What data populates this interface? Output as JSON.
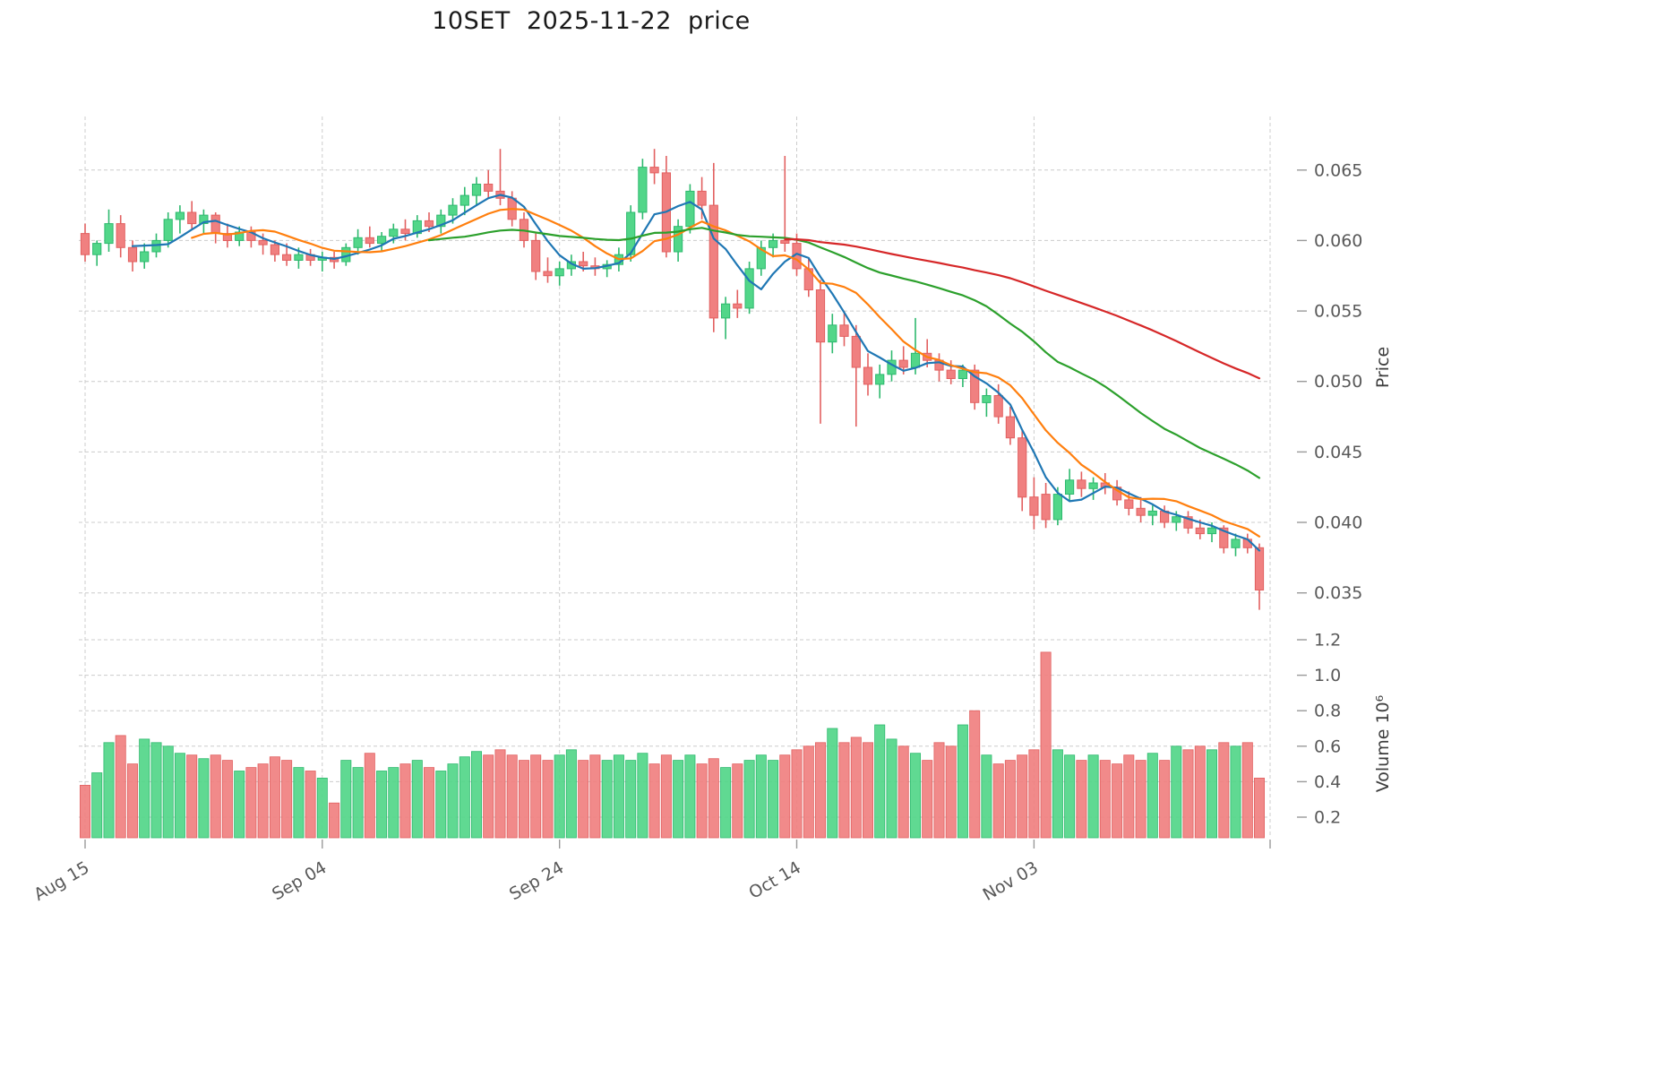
{
  "title": "10SET  2025-11-22  price",
  "chart_data": {
    "type": "candlestick",
    "symbol": "10SET",
    "as_of_date": "2025-11-22",
    "title": "10SET  2025-11-22  price",
    "legend_position": "none",
    "grid": true,
    "price_axis": {
      "label": "Price",
      "min": 0.0332,
      "max": 0.0688,
      "ticks": [
        0.065,
        0.06,
        0.055,
        0.05,
        0.045,
        0.04,
        0.035
      ]
    },
    "volume_axis": {
      "label": "Volume  10⁶",
      "ticks": [
        1.2,
        1.0,
        0.8,
        0.6,
        0.4,
        0.2
      ]
    },
    "x_ticks": [
      {
        "index": 0,
        "label": "Aug 15"
      },
      {
        "index": 20,
        "label": "Sep 04"
      },
      {
        "index": 40,
        "label": "Sep 24"
      },
      {
        "index": 60,
        "label": "Oct 14"
      },
      {
        "index": 80,
        "label": "Nov 03"
      }
    ],
    "moving_averages": [
      {
        "name": "MA5",
        "window": 5,
        "color": "#1f77b4"
      },
      {
        "name": "MA10",
        "window": 10,
        "color": "#ff7f0e"
      },
      {
        "name": "MA30",
        "window": 30,
        "color": "#2ca02c"
      },
      {
        "name": "MA60",
        "window": 60,
        "color": "#d62728"
      }
    ],
    "colors": {
      "up": "#52d689",
      "up_edge": "#2eb96e",
      "down": "#f08080",
      "down_edge": "#e26060",
      "grid": "#cccccc",
      "tick_text": "#595959",
      "axis_text": "#3d3d3d",
      "title_text": "#1a1a1a"
    },
    "candles_format": [
      "open",
      "high",
      "low",
      "close",
      "volume_millions"
    ],
    "candles": [
      [
        0.0605,
        0.0612,
        0.0585,
        0.059,
        0.38
      ],
      [
        0.059,
        0.06,
        0.0582,
        0.0598,
        0.45
      ],
      [
        0.0598,
        0.0622,
        0.0592,
        0.0612,
        0.62
      ],
      [
        0.0612,
        0.0618,
        0.0588,
        0.0595,
        0.66
      ],
      [
        0.0595,
        0.06,
        0.0578,
        0.0585,
        0.5
      ],
      [
        0.0585,
        0.0598,
        0.058,
        0.0592,
        0.64
      ],
      [
        0.0592,
        0.0605,
        0.0588,
        0.06,
        0.62
      ],
      [
        0.06,
        0.062,
        0.0595,
        0.0615,
        0.6
      ],
      [
        0.0615,
        0.0625,
        0.0605,
        0.062,
        0.56
      ],
      [
        0.062,
        0.0628,
        0.0608,
        0.0612,
        0.55
      ],
      [
        0.0612,
        0.0622,
        0.0605,
        0.0618,
        0.53
      ],
      [
        0.0618,
        0.062,
        0.0598,
        0.0605,
        0.55
      ],
      [
        0.0605,
        0.0612,
        0.0595,
        0.06,
        0.52
      ],
      [
        0.06,
        0.061,
        0.0596,
        0.0606,
        0.46
      ],
      [
        0.0606,
        0.061,
        0.0595,
        0.06,
        0.48
      ],
      [
        0.06,
        0.0605,
        0.059,
        0.0597,
        0.5
      ],
      [
        0.0597,
        0.06,
        0.0585,
        0.059,
        0.54
      ],
      [
        0.059,
        0.0598,
        0.0582,
        0.0586,
        0.52
      ],
      [
        0.0586,
        0.0595,
        0.058,
        0.059,
        0.48
      ],
      [
        0.059,
        0.0594,
        0.0582,
        0.0586,
        0.46
      ],
      [
        0.0586,
        0.0592,
        0.0578,
        0.0588,
        0.42
      ],
      [
        0.0588,
        0.0592,
        0.058,
        0.0585,
        0.28
      ],
      [
        0.0585,
        0.0598,
        0.0582,
        0.0595,
        0.52
      ],
      [
        0.0595,
        0.0608,
        0.059,
        0.0602,
        0.48
      ],
      [
        0.0602,
        0.061,
        0.0595,
        0.0598,
        0.56
      ],
      [
        0.0598,
        0.0606,
        0.0592,
        0.0603,
        0.46
      ],
      [
        0.0603,
        0.0612,
        0.0598,
        0.0608,
        0.48
      ],
      [
        0.0608,
        0.0615,
        0.06,
        0.0605,
        0.5
      ],
      [
        0.0605,
        0.0618,
        0.0602,
        0.0614,
        0.52
      ],
      [
        0.0614,
        0.062,
        0.0606,
        0.061,
        0.48
      ],
      [
        0.061,
        0.0622,
        0.0605,
        0.0618,
        0.46
      ],
      [
        0.0618,
        0.063,
        0.0612,
        0.0625,
        0.5
      ],
      [
        0.0625,
        0.0638,
        0.0618,
        0.0632,
        0.54
      ],
      [
        0.0632,
        0.0645,
        0.0625,
        0.064,
        0.57
      ],
      [
        0.064,
        0.065,
        0.063,
        0.0635,
        0.55
      ],
      [
        0.0635,
        0.0665,
        0.0625,
        0.063,
        0.58
      ],
      [
        0.063,
        0.0635,
        0.061,
        0.0615,
        0.55
      ],
      [
        0.0615,
        0.062,
        0.0595,
        0.06,
        0.52
      ],
      [
        0.06,
        0.0605,
        0.0572,
        0.0578,
        0.55
      ],
      [
        0.0578,
        0.0588,
        0.057,
        0.0575,
        0.52
      ],
      [
        0.0575,
        0.0585,
        0.0568,
        0.058,
        0.55
      ],
      [
        0.058,
        0.059,
        0.0575,
        0.0585,
        0.58
      ],
      [
        0.0585,
        0.0592,
        0.0578,
        0.0582,
        0.52
      ],
      [
        0.0582,
        0.0588,
        0.0575,
        0.058,
        0.55
      ],
      [
        0.058,
        0.0586,
        0.0574,
        0.0583,
        0.52
      ],
      [
        0.0583,
        0.0595,
        0.0578,
        0.059,
        0.55
      ],
      [
        0.059,
        0.0625,
        0.0585,
        0.062,
        0.52
      ],
      [
        0.062,
        0.0658,
        0.0615,
        0.0652,
        0.56
      ],
      [
        0.0652,
        0.0665,
        0.064,
        0.0648,
        0.5
      ],
      [
        0.0648,
        0.066,
        0.0588,
        0.0592,
        0.55
      ],
      [
        0.0592,
        0.0615,
        0.0585,
        0.061,
        0.52
      ],
      [
        0.061,
        0.064,
        0.0605,
        0.0635,
        0.55
      ],
      [
        0.0635,
        0.0645,
        0.0615,
        0.0625,
        0.5
      ],
      [
        0.0625,
        0.0655,
        0.0535,
        0.0545,
        0.53
      ],
      [
        0.0545,
        0.056,
        0.053,
        0.0555,
        0.48
      ],
      [
        0.0555,
        0.0565,
        0.0545,
        0.0552,
        0.5
      ],
      [
        0.0552,
        0.0585,
        0.0548,
        0.058,
        0.52
      ],
      [
        0.058,
        0.06,
        0.0575,
        0.0595,
        0.55
      ],
      [
        0.0595,
        0.0605,
        0.0588,
        0.06,
        0.52
      ],
      [
        0.06,
        0.066,
        0.0592,
        0.0598,
        0.55
      ],
      [
        0.0598,
        0.0605,
        0.0575,
        0.058,
        0.58
      ],
      [
        0.058,
        0.0588,
        0.056,
        0.0565,
        0.6
      ],
      [
        0.0565,
        0.0572,
        0.047,
        0.0528,
        0.62
      ],
      [
        0.0528,
        0.0548,
        0.052,
        0.054,
        0.7
      ],
      [
        0.054,
        0.055,
        0.0525,
        0.0532,
        0.62
      ],
      [
        0.0532,
        0.054,
        0.0468,
        0.051,
        0.65
      ],
      [
        0.051,
        0.052,
        0.049,
        0.0498,
        0.62
      ],
      [
        0.0498,
        0.0512,
        0.0488,
        0.0505,
        0.72
      ],
      [
        0.0505,
        0.0522,
        0.05,
        0.0515,
        0.64
      ],
      [
        0.0515,
        0.0525,
        0.0505,
        0.051,
        0.6
      ],
      [
        0.051,
        0.0545,
        0.0505,
        0.052,
        0.56
      ],
      [
        0.052,
        0.053,
        0.051,
        0.0515,
        0.52
      ],
      [
        0.0515,
        0.052,
        0.05,
        0.0508,
        0.62
      ],
      [
        0.0508,
        0.0515,
        0.0498,
        0.0502,
        0.6
      ],
      [
        0.0502,
        0.0512,
        0.0496,
        0.0508,
        0.72
      ],
      [
        0.0508,
        0.0512,
        0.048,
        0.0485,
        0.8
      ],
      [
        0.0485,
        0.0495,
        0.0475,
        0.049,
        0.55
      ],
      [
        0.049,
        0.0498,
        0.047,
        0.0475,
        0.5
      ],
      [
        0.0475,
        0.0482,
        0.0455,
        0.046,
        0.52
      ],
      [
        0.046,
        0.0465,
        0.0408,
        0.0418,
        0.55
      ],
      [
        0.0418,
        0.0432,
        0.0395,
        0.0405,
        0.58
      ],
      [
        0.042,
        0.0428,
        0.0396,
        0.0402,
        1.13
      ],
      [
        0.0402,
        0.0425,
        0.0398,
        0.042,
        0.58
      ],
      [
        0.042,
        0.0438,
        0.0415,
        0.043,
        0.55
      ],
      [
        0.043,
        0.0436,
        0.0418,
        0.0424,
        0.52
      ],
      [
        0.0424,
        0.0432,
        0.0416,
        0.0428,
        0.55
      ],
      [
        0.0428,
        0.0435,
        0.042,
        0.0425,
        0.52
      ],
      [
        0.0425,
        0.043,
        0.0412,
        0.0416,
        0.5
      ],
      [
        0.0416,
        0.0422,
        0.0405,
        0.041,
        0.55
      ],
      [
        0.041,
        0.0418,
        0.04,
        0.0405,
        0.52
      ],
      [
        0.0405,
        0.0412,
        0.0398,
        0.0408,
        0.56
      ],
      [
        0.0408,
        0.0412,
        0.0396,
        0.04,
        0.52
      ],
      [
        0.04,
        0.0408,
        0.0394,
        0.0404,
        0.6
      ],
      [
        0.0404,
        0.0408,
        0.0392,
        0.0396,
        0.58
      ],
      [
        0.0396,
        0.0402,
        0.0388,
        0.0392,
        0.6
      ],
      [
        0.0392,
        0.04,
        0.0386,
        0.0396,
        0.58
      ],
      [
        0.0396,
        0.0398,
        0.0378,
        0.0382,
        0.62
      ],
      [
        0.0382,
        0.0392,
        0.0376,
        0.0388,
        0.6
      ],
      [
        0.0388,
        0.0392,
        0.0378,
        0.0382,
        0.62
      ],
      [
        0.0382,
        0.0385,
        0.0338,
        0.0352,
        0.42
      ]
    ]
  }
}
